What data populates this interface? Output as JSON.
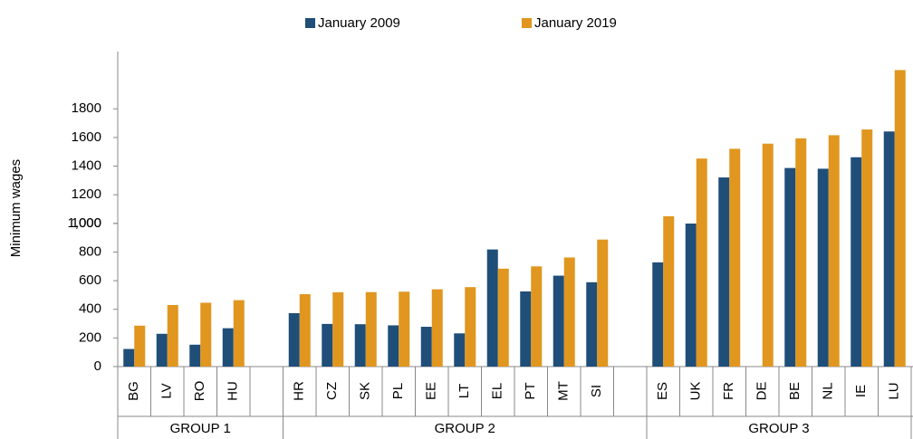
{
  "chart_data": {
    "type": "bar",
    "y_label": "Minimum wages",
    "categories": [
      "BG",
      "LV",
      "RO",
      "HU",
      null,
      "HR",
      "CZ",
      "SK",
      "PL",
      "EE",
      "LT",
      "EL",
      "PT",
      "MT",
      "SI",
      null,
      "ES",
      "UK",
      "FR",
      "DE",
      "BE",
      "NL",
      "IE",
      "LU"
    ],
    "groups": [
      {
        "name": "GROUP 1",
        "span": 5
      },
      {
        "name": "GROUP 2",
        "span": 11
      },
      {
        "name": "GROUP 3",
        "span": 8
      }
    ],
    "series": [
      {
        "name": "January 2009",
        "color": "#1f4e79",
        "values": [
          123,
          229,
          153,
          268,
          null,
          373,
          298,
          296,
          288,
          278,
          232,
          818,
          525,
          635,
          589,
          null,
          728,
          999,
          1321,
          null,
          1387,
          1382,
          1462,
          1642
        ]
      },
      {
        "name": "January 2019",
        "color": "#e0961f",
        "values": [
          286,
          430,
          446,
          464,
          null,
          506,
          519,
          520,
          523,
          540,
          555,
          684,
          700,
          762,
          887,
          null,
          1050,
          1453,
          1521,
          1557,
          1594,
          1616,
          1656,
          2071
        ]
      }
    ],
    "ylim": [
      0,
      2200
    ],
    "yticks": [
      0,
      200,
      400,
      600,
      800,
      1000,
      1200,
      1400,
      1600,
      1800,
      {
        "value": 1000,
        "label": "1,000"
      }
    ],
    "legend": "top"
  }
}
